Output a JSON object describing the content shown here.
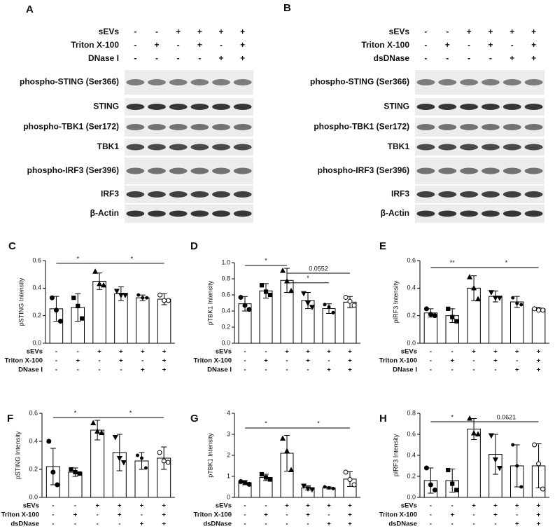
{
  "blots": [
    {
      "panel": "A",
      "conditions": [
        {
          "label": "sEVs",
          "signs": [
            "-",
            "-",
            "+",
            "+",
            "+",
            "+"
          ]
        },
        {
          "label": "Triton X-100",
          "signs": [
            "-",
            "+",
            "-",
            "+",
            "-",
            "+"
          ]
        },
        {
          "label": "DNase I",
          "signs": [
            "-",
            "-",
            "-",
            "-",
            "+",
            "+"
          ]
        }
      ],
      "bands": [
        "phospho-STING (Ser366)",
        "STING",
        "phospho-TBK1 (Ser172)",
        "TBK1",
        "phospho-IRF3 (Ser396)",
        "IRF3",
        "β-Actin"
      ]
    },
    {
      "panel": "B",
      "conditions": [
        {
          "label": "sEVs",
          "signs": [
            "-",
            "-",
            "+",
            "+",
            "+",
            "+"
          ]
        },
        {
          "label": "Triton X-100",
          "signs": [
            "-",
            "+",
            "-",
            "+",
            "-",
            "+"
          ]
        },
        {
          "label": "dsDNase",
          "signs": [
            "-",
            "-",
            "-",
            "-",
            "+",
            "+"
          ]
        }
      ],
      "bands": [
        "phospho-STING (Ser366)",
        "STING",
        "phospho-TBK1 (Ser172)",
        "TBK1",
        "phospho-IRF3 (Ser396)",
        "IRF3",
        "β-Actin"
      ]
    }
  ],
  "chart_data": [
    {
      "type": "bar",
      "panel": "C",
      "ylabel": "pSTING Intensity",
      "ylim": [
        0,
        0.6
      ],
      "yticks": [
        {
          "value": 0,
          "label": "0.0"
        },
        0.2,
        0.4,
        0.6
      ],
      "values": [
        0.25,
        0.26,
        0.45,
        0.36,
        0.33,
        0.32
      ],
      "errors": [
        0.09,
        0.1,
        0.06,
        0.05,
        0.02,
        0.04
      ],
      "points": [
        [
          0.33,
          0.24,
          0.16
        ],
        [
          0.33,
          0.27,
          0.18
        ],
        [
          0.52,
          0.43,
          0.42
        ],
        [
          0.38,
          0.35,
          0.35
        ],
        [
          0.35,
          0.33,
          0.33
        ],
        [
          0.35,
          0.31,
          0.31
        ]
      ],
      "markers": [
        "circle",
        "square",
        "triangle",
        "triangle-down",
        "dot",
        "open-circle"
      ],
      "annotations": [
        {
          "text": "*",
          "from": 0,
          "to": 2,
          "y": 0.58
        },
        {
          "text": "*",
          "from": 2,
          "to": 5,
          "y": 0.58
        }
      ],
      "conditions": [
        {
          "label": "sEVs",
          "signs": [
            "-",
            "-",
            "+",
            "+",
            "+",
            "+"
          ]
        },
        {
          "label": "Triton X-100",
          "signs": [
            "-",
            "+",
            "-",
            "+",
            "-",
            "+"
          ]
        },
        {
          "label": "DNase I",
          "signs": [
            "-",
            "-",
            "-",
            "-",
            "+",
            "+"
          ]
        }
      ]
    },
    {
      "type": "bar",
      "panel": "D",
      "ylabel": "pTBK1 Intensity",
      "ylim": [
        0,
        1
      ],
      "yticks": [
        {
          "value": 0,
          "label": "0.0"
        },
        0.2,
        0.4,
        0.6,
        0.8,
        {
          "value": 1,
          "label": "1.0"
        }
      ],
      "values": [
        0.49,
        0.65,
        0.78,
        0.53,
        0.43,
        0.51
      ],
      "errors": [
        0.09,
        0.09,
        0.15,
        0.1,
        0.06,
        0.07
      ],
      "points": [
        [
          0.57,
          0.47,
          0.42
        ],
        [
          0.72,
          0.64,
          0.6
        ],
        [
          0.9,
          0.77,
          0.65
        ],
        [
          0.62,
          0.5,
          0.45
        ],
        [
          0.48,
          0.45,
          0.38
        ],
        [
          0.57,
          0.52,
          0.47
        ]
      ],
      "markers": [
        "circle",
        "square",
        "triangle",
        "triangle-down",
        "dot",
        "open-circle"
      ],
      "annotations": [
        {
          "text": "*",
          "from": 0,
          "to": 2,
          "y": 0.97
        },
        {
          "text": "0.0552",
          "from": 2,
          "to": 5,
          "y": 0.87
        },
        {
          "text": "*",
          "from": 2,
          "to": 4,
          "y": 0.75
        }
      ],
      "conditions": [
        {
          "label": "sEVs",
          "signs": [
            "-",
            "-",
            "+",
            "+",
            "+",
            "+"
          ]
        },
        {
          "label": "Triton X-100",
          "signs": [
            "-",
            "+",
            "-",
            "+",
            "-",
            "+"
          ]
        },
        {
          "label": "DNase I",
          "signs": [
            "-",
            "-",
            "-",
            "-",
            "+",
            "+"
          ]
        }
      ]
    },
    {
      "type": "bar",
      "panel": "E",
      "ylabel": "pIRF3 Intensity",
      "ylim": [
        0,
        0.6
      ],
      "yticks": [
        {
          "value": 0,
          "label": "0.0"
        },
        0.2,
        0.4,
        0.6
      ],
      "values": [
        0.22,
        0.2,
        0.4,
        0.34,
        0.3,
        0.25
      ],
      "errors": [
        0.03,
        0.05,
        0.09,
        0.04,
        0.04,
        0.01
      ],
      "points": [
        [
          0.25,
          0.21,
          0.2
        ],
        [
          0.25,
          0.19,
          0.16
        ],
        [
          0.48,
          0.4,
          0.32
        ],
        [
          0.37,
          0.33,
          0.33
        ],
        [
          0.33,
          0.29,
          0.28
        ],
        [
          0.25,
          0.24,
          0.24
        ]
      ],
      "markers": [
        "circle",
        "square",
        "triangle",
        "triangle-down",
        "dot",
        "open-circle"
      ],
      "annotations": [
        {
          "text": "**",
          "from": 0,
          "to": 2,
          "y": 0.55
        },
        {
          "text": "*",
          "from": 2,
          "to": 5,
          "y": 0.55
        }
      ],
      "conditions": [
        {
          "label": "sEVs",
          "signs": [
            "-",
            "-",
            "+",
            "+",
            "+",
            "+"
          ]
        },
        {
          "label": "Triton X-100",
          "signs": [
            "-",
            "+",
            "-",
            "+",
            "-",
            "+"
          ]
        },
        {
          "label": "DNase I",
          "signs": [
            "-",
            "-",
            "-",
            "-",
            "+",
            "+"
          ]
        }
      ]
    },
    {
      "type": "bar",
      "panel": "F",
      "ylabel": "pSTING Intensity",
      "ylim": [
        0,
        0.6
      ],
      "yticks": [
        {
          "value": 0,
          "label": "0.0"
        },
        0.2,
        0.4,
        0.6
      ],
      "values": [
        0.22,
        0.18,
        0.48,
        0.32,
        0.26,
        0.28
      ],
      "errors": [
        0.13,
        0.03,
        0.07,
        0.13,
        0.06,
        0.08
      ],
      "points": [
        [
          0.4,
          0.18,
          0.09
        ],
        [
          0.2,
          0.18,
          0.17
        ],
        [
          0.53,
          0.47,
          0.46
        ],
        [
          0.43,
          0.28,
          0.25
        ],
        [
          0.3,
          0.28,
          0.21
        ],
        [
          0.32,
          0.26,
          0.25
        ]
      ],
      "markers": [
        "circle",
        "square",
        "triangle",
        "triangle-down",
        "dot",
        "open-circle"
      ],
      "annotations": [
        {
          "text": "*",
          "from": 0,
          "to": 2,
          "y": 0.57
        },
        {
          "text": "*",
          "from": 2,
          "to": 5,
          "y": 0.57
        }
      ],
      "conditions": [
        {
          "label": "sEVs",
          "signs": [
            "-",
            "-",
            "+",
            "+",
            "+",
            "+"
          ]
        },
        {
          "label": "Triton X-100",
          "signs": [
            "-",
            "+",
            "-",
            "+",
            "-",
            "+"
          ]
        },
        {
          "label": "dsDNase",
          "signs": [
            "-",
            "-",
            "-",
            "-",
            "+",
            "+"
          ]
        }
      ]
    },
    {
      "type": "bar",
      "panel": "G",
      "ylabel": "pTBK1 Intensity",
      "ylim": [
        0,
        4
      ],
      "yticks": [
        0,
        1,
        2,
        3,
        4
      ],
      "values": [
        0.7,
        0.95,
        2.1,
        0.45,
        0.45,
        0.87
      ],
      "errors": [
        0.1,
        0.15,
        0.85,
        0.1,
        0.05,
        0.35
      ],
      "points": [
        [
          0.75,
          0.7,
          0.62
        ],
        [
          1.1,
          0.95,
          0.85
        ],
        [
          2.8,
          2.2,
          1.3
        ],
        [
          0.55,
          0.42,
          0.38
        ],
        [
          0.5,
          0.45,
          0.42
        ],
        [
          1.2,
          0.85,
          0.6
        ]
      ],
      "markers": [
        "circle",
        "square",
        "triangle",
        "triangle-down",
        "dot",
        "open-circle"
      ],
      "annotations": [
        {
          "text": "*",
          "from": 0,
          "to": 2,
          "y": 3.3
        },
        {
          "text": "*",
          "from": 2,
          "to": 5,
          "y": 3.3
        }
      ],
      "conditions": [
        {
          "label": "sEVs",
          "signs": [
            "-",
            "-",
            "+",
            "+",
            "+",
            "+"
          ]
        },
        {
          "label": "Triton X-100",
          "signs": [
            "-",
            "+",
            "-",
            "+",
            "-",
            "+"
          ]
        },
        {
          "label": "dsDNase",
          "signs": [
            "-",
            "-",
            "-",
            "-",
            "+",
            "+"
          ]
        }
      ]
    },
    {
      "type": "bar",
      "panel": "H",
      "ylabel": "pIRF3 Intensity",
      "ylim": [
        0,
        0.8
      ],
      "yticks": [
        {
          "value": 0,
          "label": "0.0"
        },
        0.2,
        0.4,
        0.6,
        0.8
      ],
      "values": [
        0.16,
        0.16,
        0.65,
        0.41,
        0.3,
        0.3
      ],
      "errors": [
        0.12,
        0.11,
        0.1,
        0.19,
        0.2,
        0.21
      ],
      "points": [
        [
          0.28,
          0.12,
          0.07
        ],
        [
          0.26,
          0.13,
          0.07
        ],
        [
          0.75,
          0.61,
          0.6
        ],
        [
          0.59,
          0.36,
          0.28
        ],
        [
          0.5,
          0.3,
          0.1
        ],
        [
          0.5,
          0.32,
          0.08
        ]
      ],
      "markers": [
        "circle",
        "square",
        "triangle",
        "triangle-down",
        "dot",
        "open-circle"
      ],
      "annotations": [
        {
          "text": "*",
          "from": 0,
          "to": 2,
          "y": 0.72
        },
        {
          "text": "0.0621",
          "from": 2,
          "to": 5,
          "y": 0.72
        }
      ],
      "conditions": [
        {
          "label": "sEVs",
          "signs": [
            "-",
            "-",
            "+",
            "+",
            "+",
            "+"
          ]
        },
        {
          "label": "Triton X-100",
          "signs": [
            "-",
            "+",
            "-",
            "+",
            "-",
            "+"
          ]
        },
        {
          "label": "dsDNase",
          "signs": [
            "-",
            "-",
            "-",
            "-",
            "+",
            "+"
          ]
        }
      ]
    }
  ]
}
